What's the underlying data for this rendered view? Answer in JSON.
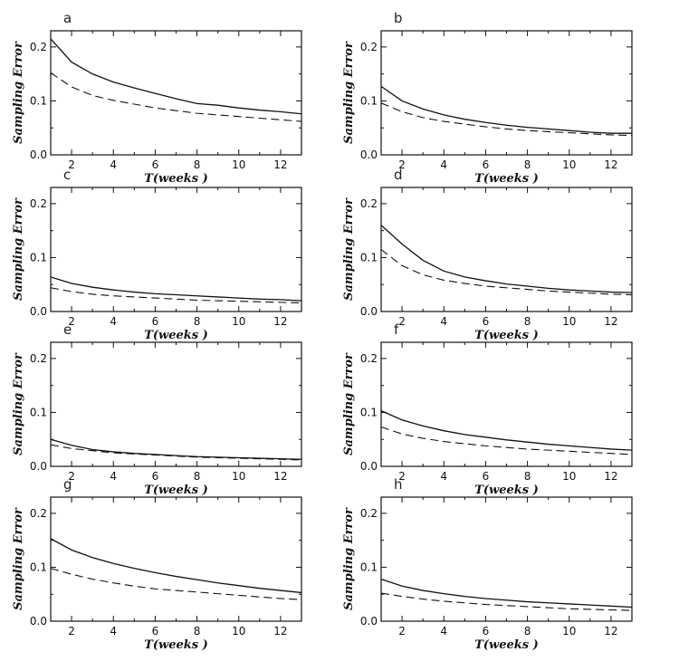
{
  "chart_data": [
    {
      "type": "line",
      "panel": "a",
      "xlabel": "T(weeks )",
      "ylabel": "Sampling Error",
      "xlim": [
        1,
        13
      ],
      "ylim": [
        0,
        0.23
      ],
      "xticks": [
        "2",
        "4",
        "6",
        "8",
        "10",
        "12"
      ],
      "yticks": [
        "0.0",
        "0.1",
        "0.2"
      ],
      "x": [
        1,
        2,
        3,
        4,
        5,
        6,
        7,
        8,
        9,
        10,
        11,
        12,
        13
      ],
      "series": [
        {
          "style": "solid",
          "values": [
            0.215,
            0.172,
            0.15,
            0.135,
            0.124,
            0.114,
            0.104,
            0.095,
            0.092,
            0.087,
            0.083,
            0.08,
            0.076
          ]
        },
        {
          "style": "dashed",
          "values": [
            0.152,
            0.126,
            0.11,
            0.101,
            0.094,
            0.087,
            0.082,
            0.077,
            0.074,
            0.071,
            0.068,
            0.065,
            0.062
          ]
        }
      ]
    },
    {
      "type": "line",
      "panel": "b",
      "xlabel": "T(weeks )",
      "ylabel": "Sampling Error",
      "xlim": [
        1,
        13
      ],
      "ylim": [
        0,
        0.23
      ],
      "xticks": [
        "2",
        "4",
        "6",
        "8",
        "10",
        "12"
      ],
      "yticks": [
        "0.0",
        "0.1",
        "0.2"
      ],
      "x": [
        1,
        2,
        3,
        4,
        5,
        6,
        7,
        8,
        9,
        10,
        11,
        12,
        13
      ],
      "series": [
        {
          "style": "solid",
          "values": [
            0.127,
            0.1,
            0.085,
            0.074,
            0.066,
            0.06,
            0.055,
            0.051,
            0.048,
            0.045,
            0.042,
            0.04,
            0.04
          ]
        },
        {
          "style": "dashed",
          "values": [
            0.096,
            0.08,
            0.069,
            0.062,
            0.057,
            0.052,
            0.048,
            0.045,
            0.043,
            0.041,
            0.039,
            0.037,
            0.036
          ]
        }
      ]
    },
    {
      "type": "line",
      "panel": "c",
      "xlabel": "T(weeks )",
      "ylabel": "Sampling Error",
      "xlim": [
        1,
        13
      ],
      "ylim": [
        0,
        0.23
      ],
      "xticks": [
        "2",
        "4",
        "6",
        "8",
        "10",
        "12"
      ],
      "yticks": [
        "0.0",
        "0.1",
        "0.2"
      ],
      "x": [
        1,
        2,
        3,
        4,
        5,
        6,
        7,
        8,
        9,
        10,
        11,
        12,
        13
      ],
      "series": [
        {
          "style": "solid",
          "values": [
            0.064,
            0.052,
            0.045,
            0.04,
            0.036,
            0.033,
            0.031,
            0.029,
            0.027,
            0.025,
            0.023,
            0.022,
            0.02
          ]
        },
        {
          "style": "dashed",
          "values": [
            0.044,
            0.037,
            0.032,
            0.029,
            0.027,
            0.025,
            0.023,
            0.021,
            0.02,
            0.019,
            0.018,
            0.017,
            0.016
          ]
        }
      ]
    },
    {
      "type": "line",
      "panel": "d",
      "xlabel": "T(weeks )",
      "ylabel": "Sampling Error",
      "xlim": [
        1,
        13
      ],
      "ylim": [
        0,
        0.23
      ],
      "xticks": [
        "2",
        "4",
        "6",
        "8",
        "10",
        "12"
      ],
      "yticks": [
        "0.0",
        "0.1",
        "0.2"
      ],
      "x": [
        1,
        2,
        3,
        4,
        5,
        6,
        7,
        8,
        9,
        10,
        11,
        12,
        13
      ],
      "series": [
        {
          "style": "solid",
          "values": [
            0.16,
            0.125,
            0.095,
            0.075,
            0.064,
            0.057,
            0.051,
            0.047,
            0.043,
            0.04,
            0.038,
            0.036,
            0.035
          ]
        },
        {
          "style": "dashed",
          "values": [
            0.115,
            0.085,
            0.068,
            0.058,
            0.052,
            0.047,
            0.044,
            0.041,
            0.038,
            0.036,
            0.034,
            0.032,
            0.031
          ]
        }
      ]
    },
    {
      "type": "line",
      "panel": "e",
      "xlabel": "T(weeks )",
      "ylabel": "Sampling Error",
      "xlim": [
        1,
        13
      ],
      "ylim": [
        0,
        0.23
      ],
      "xticks": [
        "2",
        "4",
        "6",
        "8",
        "10",
        "12"
      ],
      "yticks": [
        "0.0",
        "0.1",
        "0.2"
      ],
      "x": [
        1,
        2,
        3,
        4,
        5,
        6,
        7,
        8,
        9,
        10,
        11,
        12,
        13
      ],
      "series": [
        {
          "style": "solid",
          "values": [
            0.05,
            0.039,
            0.031,
            0.027,
            0.024,
            0.022,
            0.02,
            0.018,
            0.017,
            0.016,
            0.015,
            0.014,
            0.013
          ]
        },
        {
          "style": "dashed",
          "values": [
            0.04,
            0.033,
            0.029,
            0.025,
            0.023,
            0.021,
            0.019,
            0.017,
            0.016,
            0.015,
            0.014,
            0.013,
            0.012
          ]
        }
      ]
    },
    {
      "type": "line",
      "panel": "f",
      "xlabel": "T(weeks )",
      "ylabel": "Sampling Error",
      "xlim": [
        1,
        13
      ],
      "ylim": [
        0,
        0.23
      ],
      "xticks": [
        "2",
        "4",
        "6",
        "8",
        "10",
        "12"
      ],
      "yticks": [
        "0.0",
        "0.1",
        "0.2"
      ],
      "x": [
        1,
        2,
        3,
        4,
        5,
        6,
        7,
        8,
        9,
        10,
        11,
        12,
        13
      ],
      "series": [
        {
          "style": "solid",
          "values": [
            0.103,
            0.086,
            0.075,
            0.066,
            0.059,
            0.054,
            0.049,
            0.045,
            0.041,
            0.038,
            0.035,
            0.032,
            0.03
          ]
        },
        {
          "style": "dashed",
          "values": [
            0.073,
            0.06,
            0.052,
            0.046,
            0.042,
            0.038,
            0.035,
            0.032,
            0.03,
            0.028,
            0.026,
            0.024,
            0.022
          ]
        }
      ]
    },
    {
      "type": "line",
      "panel": "g",
      "xlabel": "T(weeks )",
      "ylabel": "Sampling Error",
      "xlim": [
        1,
        13
      ],
      "ylim": [
        0,
        0.23
      ],
      "xticks": [
        "2",
        "4",
        "6",
        "8",
        "10",
        "12"
      ],
      "yticks": [
        "0.0",
        "0.1",
        "0.2"
      ],
      "x": [
        1,
        2,
        3,
        4,
        5,
        6,
        7,
        8,
        9,
        10,
        11,
        12,
        13
      ],
      "series": [
        {
          "style": "solid",
          "values": [
            0.153,
            0.132,
            0.118,
            0.107,
            0.098,
            0.09,
            0.083,
            0.077,
            0.071,
            0.066,
            0.061,
            0.057,
            0.053
          ]
        },
        {
          "style": "dashed",
          "values": [
            0.098,
            0.087,
            0.078,
            0.071,
            0.065,
            0.06,
            0.057,
            0.054,
            0.051,
            0.048,
            0.045,
            0.042,
            0.04
          ]
        }
      ]
    },
    {
      "type": "line",
      "panel": "h",
      "xlabel": "T(weeks )",
      "ylabel": "Sampling Error",
      "xlim": [
        1,
        13
      ],
      "ylim": [
        0,
        0.23
      ],
      "xticks": [
        "2",
        "4",
        "6",
        "8",
        "10",
        "12"
      ],
      "yticks": [
        "0.0",
        "0.1",
        "0.2"
      ],
      "x": [
        1,
        2,
        3,
        4,
        5,
        6,
        7,
        8,
        9,
        10,
        11,
        12,
        13
      ],
      "series": [
        {
          "style": "solid",
          "values": [
            0.078,
            0.065,
            0.057,
            0.051,
            0.046,
            0.042,
            0.039,
            0.036,
            0.034,
            0.032,
            0.03,
            0.028,
            0.026
          ]
        },
        {
          "style": "dashed",
          "values": [
            0.052,
            0.046,
            0.041,
            0.037,
            0.034,
            0.031,
            0.029,
            0.027,
            0.025,
            0.023,
            0.022,
            0.021,
            0.02
          ]
        }
      ]
    }
  ]
}
